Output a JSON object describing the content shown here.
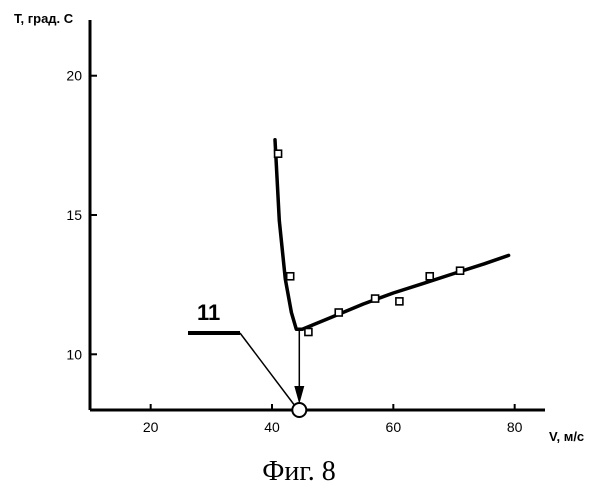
{
  "chart_data": {
    "type": "scatter",
    "title": "",
    "xlabel": "V, м/с",
    "ylabel": "T, град. С",
    "xlim": [
      10,
      85
    ],
    "ylim": [
      8,
      22
    ],
    "xticks": [
      20,
      40,
      60,
      80
    ],
    "yticks": [
      10,
      15,
      20
    ],
    "grid": false,
    "series": [
      {
        "kind": "points",
        "marker": "open-square",
        "x": [
          41,
          43,
          46,
          51,
          57,
          61,
          66,
          71
        ],
        "y": [
          17.2,
          12.8,
          10.8,
          11.5,
          12.0,
          11.9,
          12.8,
          13.0
        ]
      },
      {
        "kind": "fit-line",
        "x": [
          40.5,
          41.2,
          42.2,
          43.2,
          44.0,
          45,
          50,
          55,
          60,
          65,
          70,
          75,
          79
        ],
        "y": [
          17.7,
          14.8,
          12.7,
          11.5,
          10.9,
          10.9,
          11.35,
          11.8,
          12.2,
          12.55,
          12.9,
          13.25,
          13.55
        ]
      }
    ],
    "annotations": [
      {
        "label": "11",
        "kind": "reference-numeral"
      }
    ],
    "minimum_marker": {
      "x": 44.5,
      "y": 8
    }
  },
  "caption": "Фиг. 8"
}
